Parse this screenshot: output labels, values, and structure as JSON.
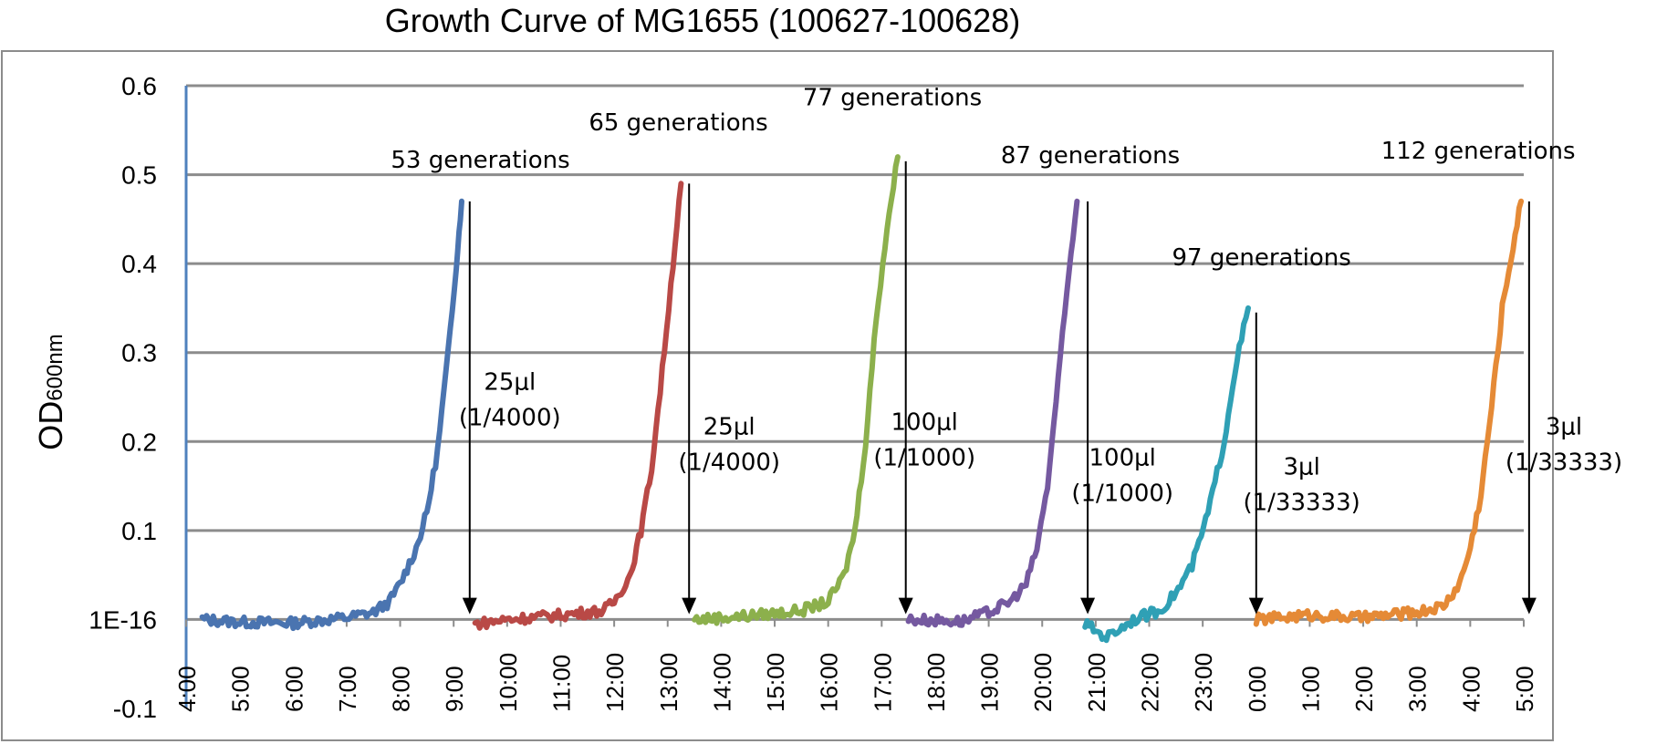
{
  "chart_data": {
    "type": "line",
    "title": "Growth Curve of MG1655 (100627-100628)",
    "ylabel_main": "OD",
    "ylabel_sub": "600nm",
    "xlabel": "",
    "ylim": [
      -0.1,
      0.6
    ],
    "y_ticks": [
      {
        "value": 0.6,
        "label": "0.6"
      },
      {
        "value": 0.5,
        "label": "0.5"
      },
      {
        "value": 0.4,
        "label": "0.4"
      },
      {
        "value": 0.3,
        "label": "0.3"
      },
      {
        "value": 0.2,
        "label": "0.2"
      },
      {
        "value": 0.1,
        "label": "0.1"
      },
      {
        "value": 0.0,
        "label": "1E-16"
      },
      {
        "value": -0.1,
        "label": "-0.1"
      }
    ],
    "xlim_hours": [
      4,
      29
    ],
    "x_ticks": [
      "4:00",
      "5:00",
      "6:00",
      "7:00",
      "8:00",
      "9:00",
      "10:00",
      "11:00",
      "12:00",
      "13:00",
      "14:00",
      "15:00",
      "16:00",
      "17:00",
      "18:00",
      "19:00",
      "20:00",
      "21:00",
      "22:00",
      "23:00",
      "0:00",
      "1:00",
      "2:00",
      "3:00",
      "4:00",
      "5:00"
    ],
    "grid": true,
    "series": [
      {
        "color": "#4a74b0",
        "points": [
          [
            4.3,
            0
          ],
          [
            5,
            -0.003
          ],
          [
            6,
            -0.004
          ],
          [
            7,
            0.002
          ],
          [
            7.5,
            0.008
          ],
          [
            7.8,
            0.02
          ],
          [
            8,
            0.04
          ],
          [
            8.3,
            0.08
          ],
          [
            8.5,
            0.12
          ],
          [
            8.7,
            0.19
          ],
          [
            8.9,
            0.3
          ],
          [
            9.05,
            0.4
          ],
          [
            9.15,
            0.47
          ]
        ]
      },
      {
        "color": "#b94946",
        "points": [
          [
            9.4,
            -0.005
          ],
          [
            10,
            0
          ],
          [
            11,
            0.005
          ],
          [
            11.8,
            0.01
          ],
          [
            12,
            0.02
          ],
          [
            12.3,
            0.05
          ],
          [
            12.5,
            0.1
          ],
          [
            12.7,
            0.17
          ],
          [
            12.9,
            0.28
          ],
          [
            13.1,
            0.4
          ],
          [
            13.25,
            0.49
          ]
        ]
      },
      {
        "color": "#8cb04c",
        "points": [
          [
            13.5,
            0
          ],
          [
            14.5,
            0.004
          ],
          [
            15.5,
            0.01
          ],
          [
            16,
            0.02
          ],
          [
            16.3,
            0.05
          ],
          [
            16.5,
            0.1
          ],
          [
            16.7,
            0.2
          ],
          [
            16.9,
            0.34
          ],
          [
            17.1,
            0.44
          ],
          [
            17.3,
            0.52
          ]
        ]
      },
      {
        "color": "#7559a0",
        "points": [
          [
            17.5,
            0
          ],
          [
            18.5,
            -0.002
          ],
          [
            19,
            0.008
          ],
          [
            19.4,
            0.02
          ],
          [
            19.7,
            0.04
          ],
          [
            19.9,
            0.08
          ],
          [
            20.1,
            0.15
          ],
          [
            20.3,
            0.27
          ],
          [
            20.5,
            0.39
          ],
          [
            20.65,
            0.47
          ]
        ]
      },
      {
        "color": "#2fa0b5",
        "points": [
          [
            20.8,
            -0.005
          ],
          [
            21.2,
            -0.02
          ],
          [
            21.7,
            0
          ],
          [
            22.2,
            0.01
          ],
          [
            22.5,
            0.03
          ],
          [
            22.8,
            0.06
          ],
          [
            23.1,
            0.12
          ],
          [
            23.4,
            0.2
          ],
          [
            23.6,
            0.28
          ],
          [
            23.85,
            0.35
          ]
        ]
      },
      {
        "color": "#e58a36",
        "points": [
          [
            24,
            0
          ],
          [
            25,
            0.005
          ],
          [
            26,
            0.002
          ],
          [
            27,
            0.008
          ],
          [
            27.5,
            0.015
          ],
          [
            27.8,
            0.04
          ],
          [
            28,
            0.08
          ],
          [
            28.2,
            0.14
          ],
          [
            28.4,
            0.24
          ],
          [
            28.6,
            0.35
          ],
          [
            28.8,
            0.42
          ],
          [
            28.95,
            0.47
          ]
        ]
      }
    ],
    "generation_labels": [
      {
        "text": "53 generations",
        "x": 9.5,
        "y": 0.508
      },
      {
        "text": "65 generations",
        "x": 13.2,
        "y": 0.55
      },
      {
        "text": "77 generations",
        "x": 17.2,
        "y": 0.578
      },
      {
        "text": "87 generations",
        "x": 20.9,
        "y": 0.513
      },
      {
        "text": "97 generations",
        "x": 24.1,
        "y": 0.398
      },
      {
        "text": "112 generations",
        "x": 28.15,
        "y": 0.518
      }
    ],
    "arrows": [
      {
        "x": 9.3,
        "from": 0.47,
        "to": 0.008
      },
      {
        "x": 13.4,
        "from": 0.49,
        "to": 0.008
      },
      {
        "x": 17.45,
        "from": 0.515,
        "to": 0.008
      },
      {
        "x": 20.85,
        "from": 0.47,
        "to": 0.008
      },
      {
        "x": 24.0,
        "from": 0.345,
        "to": 0.008
      },
      {
        "x": 29.1,
        "from": 0.47,
        "to": 0.008
      }
    ],
    "dilution_labels": [
      {
        "line1": "25μl",
        "line2": "(1/4000)",
        "x": 10.05,
        "y1": 0.258,
        "y2": 0.218
      },
      {
        "line1": "25μl",
        "line2": "(1/4000)",
        "x": 14.15,
        "y1": 0.208,
        "y2": 0.168
      },
      {
        "line1": "100μl",
        "line2": "(1/1000)",
        "x": 17.8,
        "y1": 0.213,
        "y2": 0.173
      },
      {
        "line1": "100μl",
        "line2": "(1/1000)",
        "x": 21.5,
        "y1": 0.173,
        "y2": 0.133
      },
      {
        "line1": "3μl",
        "line2": "(1/33333)",
        "x": 24.85,
        "y1": 0.163,
        "y2": 0.123
      },
      {
        "line1": "3μl",
        "line2": "(1/33333)",
        "x": 29.75,
        "y1": 0.208,
        "y2": 0.168
      }
    ]
  }
}
